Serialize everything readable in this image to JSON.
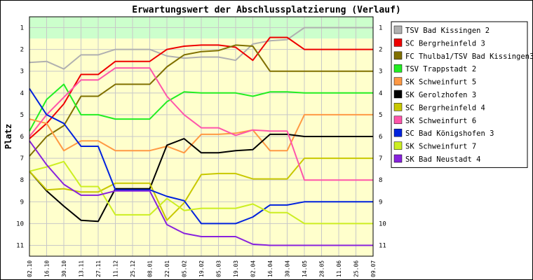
{
  "chart_data": {
    "type": "line",
    "title": "Erwartungswert der Abschlussplatzierung (Verlauf)",
    "ylabel": "Platz",
    "xlabel": "",
    "y_ticks": [
      "1",
      "2",
      "3",
      "4",
      "5",
      "6",
      "7",
      "8",
      "9",
      "10",
      "11"
    ],
    "ylim": [
      0.5,
      11.5
    ],
    "y_inverted": true,
    "grid": true,
    "legend_position": "right",
    "bands": [
      {
        "from": 0.5,
        "to": 1.5,
        "color": "#ccffcc"
      },
      {
        "from": 1.5,
        "to": 11.5,
        "color": "#ffffcc"
      }
    ],
    "categories": [
      "02.10",
      "16.10",
      "30.10",
      "13.11",
      "27.11",
      "11.12",
      "25.12",
      "08.01",
      "22.01",
      "05.02",
      "19.02",
      "05.03",
      "19.03",
      "02.04",
      "16.04",
      "30.04",
      "14.05",
      "28.05",
      "11.06",
      "25.06",
      "09.07"
    ],
    "series": [
      {
        "name": "TSV Bad Kissingen 2",
        "color": "#b0b0b0",
        "values": [
          2.6,
          2.55,
          2.9,
          2.25,
          2.25,
          2.0,
          2.0,
          2.0,
          2.3,
          2.4,
          2.35,
          2.35,
          2.5,
          1.75,
          1.6,
          1.55,
          1.0,
          1.0,
          1.0,
          1.0,
          1.0
        ]
      },
      {
        "name": "SC Bergrheinfeld 3",
        "color": "#ee0000",
        "values": [
          6.1,
          5.4,
          4.5,
          3.15,
          3.15,
          2.55,
          2.55,
          2.55,
          2.0,
          1.85,
          1.8,
          1.8,
          1.9,
          2.5,
          1.45,
          1.45,
          2.0,
          2.0,
          2.0,
          2.0,
          2.0
        ]
      },
      {
        "name": "FC Thulba1/TSV Bad Kissingen3",
        "color": "#807000",
        "values": [
          6.9,
          6.0,
          5.5,
          4.15,
          4.15,
          3.6,
          3.6,
          3.6,
          2.8,
          2.25,
          2.1,
          2.05,
          1.8,
          1.85,
          3.0,
          3.0,
          3.0,
          3.0,
          3.0,
          3.0,
          3.0
        ]
      },
      {
        "name": "TSV Trappstadt 2",
        "color": "#22ee22",
        "values": [
          5.75,
          4.3,
          3.6,
          5.0,
          5.0,
          5.2,
          5.2,
          5.2,
          4.4,
          3.95,
          4.0,
          4.0,
          4.0,
          4.15,
          3.95,
          3.95,
          4.0,
          4.0,
          4.0,
          4.0,
          4.0
        ]
      },
      {
        "name": "SK Schweinfurt 5",
        "color": "#ff9944",
        "values": [
          5.2,
          5.4,
          6.65,
          6.2,
          6.2,
          6.65,
          6.65,
          6.65,
          6.45,
          6.75,
          5.9,
          5.9,
          5.85,
          5.7,
          6.65,
          6.65,
          5.0,
          5.0,
          5.0,
          5.0,
          5.0
        ]
      },
      {
        "name": "SK Gerolzhofen 3",
        "color": "#000000",
        "values": [
          7.6,
          8.5,
          9.2,
          9.85,
          9.9,
          8.4,
          8.4,
          8.4,
          6.4,
          6.1,
          6.75,
          6.75,
          6.65,
          6.6,
          5.9,
          5.9,
          6.0,
          6.0,
          6.0,
          6.0,
          6.0
        ]
      },
      {
        "name": "SC Bergrheinfeld 4",
        "color": "#c8c800",
        "values": [
          7.6,
          8.45,
          8.4,
          8.55,
          8.55,
          8.15,
          8.15,
          8.15,
          9.85,
          9.05,
          7.75,
          7.7,
          7.7,
          7.95,
          7.95,
          7.95,
          7.0,
          7.0,
          7.0,
          7.0,
          7.0
        ]
      },
      {
        "name": "SK Schweinfurt 6",
        "color": "#ff55aa",
        "values": [
          6.0,
          5.0,
          4.2,
          3.4,
          3.4,
          2.85,
          2.85,
          2.85,
          4.15,
          5.0,
          5.6,
          5.6,
          5.95,
          5.7,
          5.75,
          5.75,
          8.0,
          8.0,
          8.0,
          8.0,
          8.0
        ]
      },
      {
        "name": "SC Bad Königshofen 3",
        "color": "#0022dd",
        "values": [
          3.8,
          5.0,
          5.4,
          6.45,
          6.45,
          8.45,
          8.45,
          8.45,
          8.75,
          8.95,
          10.0,
          10.0,
          10.0,
          9.7,
          9.15,
          9.15,
          9.0,
          9.0,
          9.0,
          9.0,
          9.0
        ]
      },
      {
        "name": "SK Schweinfurt 7",
        "color": "#ccee22",
        "values": [
          7.6,
          7.4,
          7.15,
          8.3,
          8.3,
          9.6,
          9.6,
          9.6,
          8.85,
          9.4,
          9.3,
          9.3,
          9.3,
          9.1,
          9.5,
          9.5,
          10.0,
          10.0,
          10.0,
          10.0,
          10.0
        ]
      },
      {
        "name": "SK Bad Neustadt 4",
        "color": "#8822dd",
        "values": [
          6.2,
          7.3,
          8.2,
          8.7,
          8.7,
          8.5,
          8.5,
          8.5,
          10.05,
          10.45,
          10.6,
          10.6,
          10.6,
          10.95,
          11.0,
          11.0,
          11.0,
          11.0,
          11.0,
          11.0,
          11.0
        ]
      }
    ]
  }
}
